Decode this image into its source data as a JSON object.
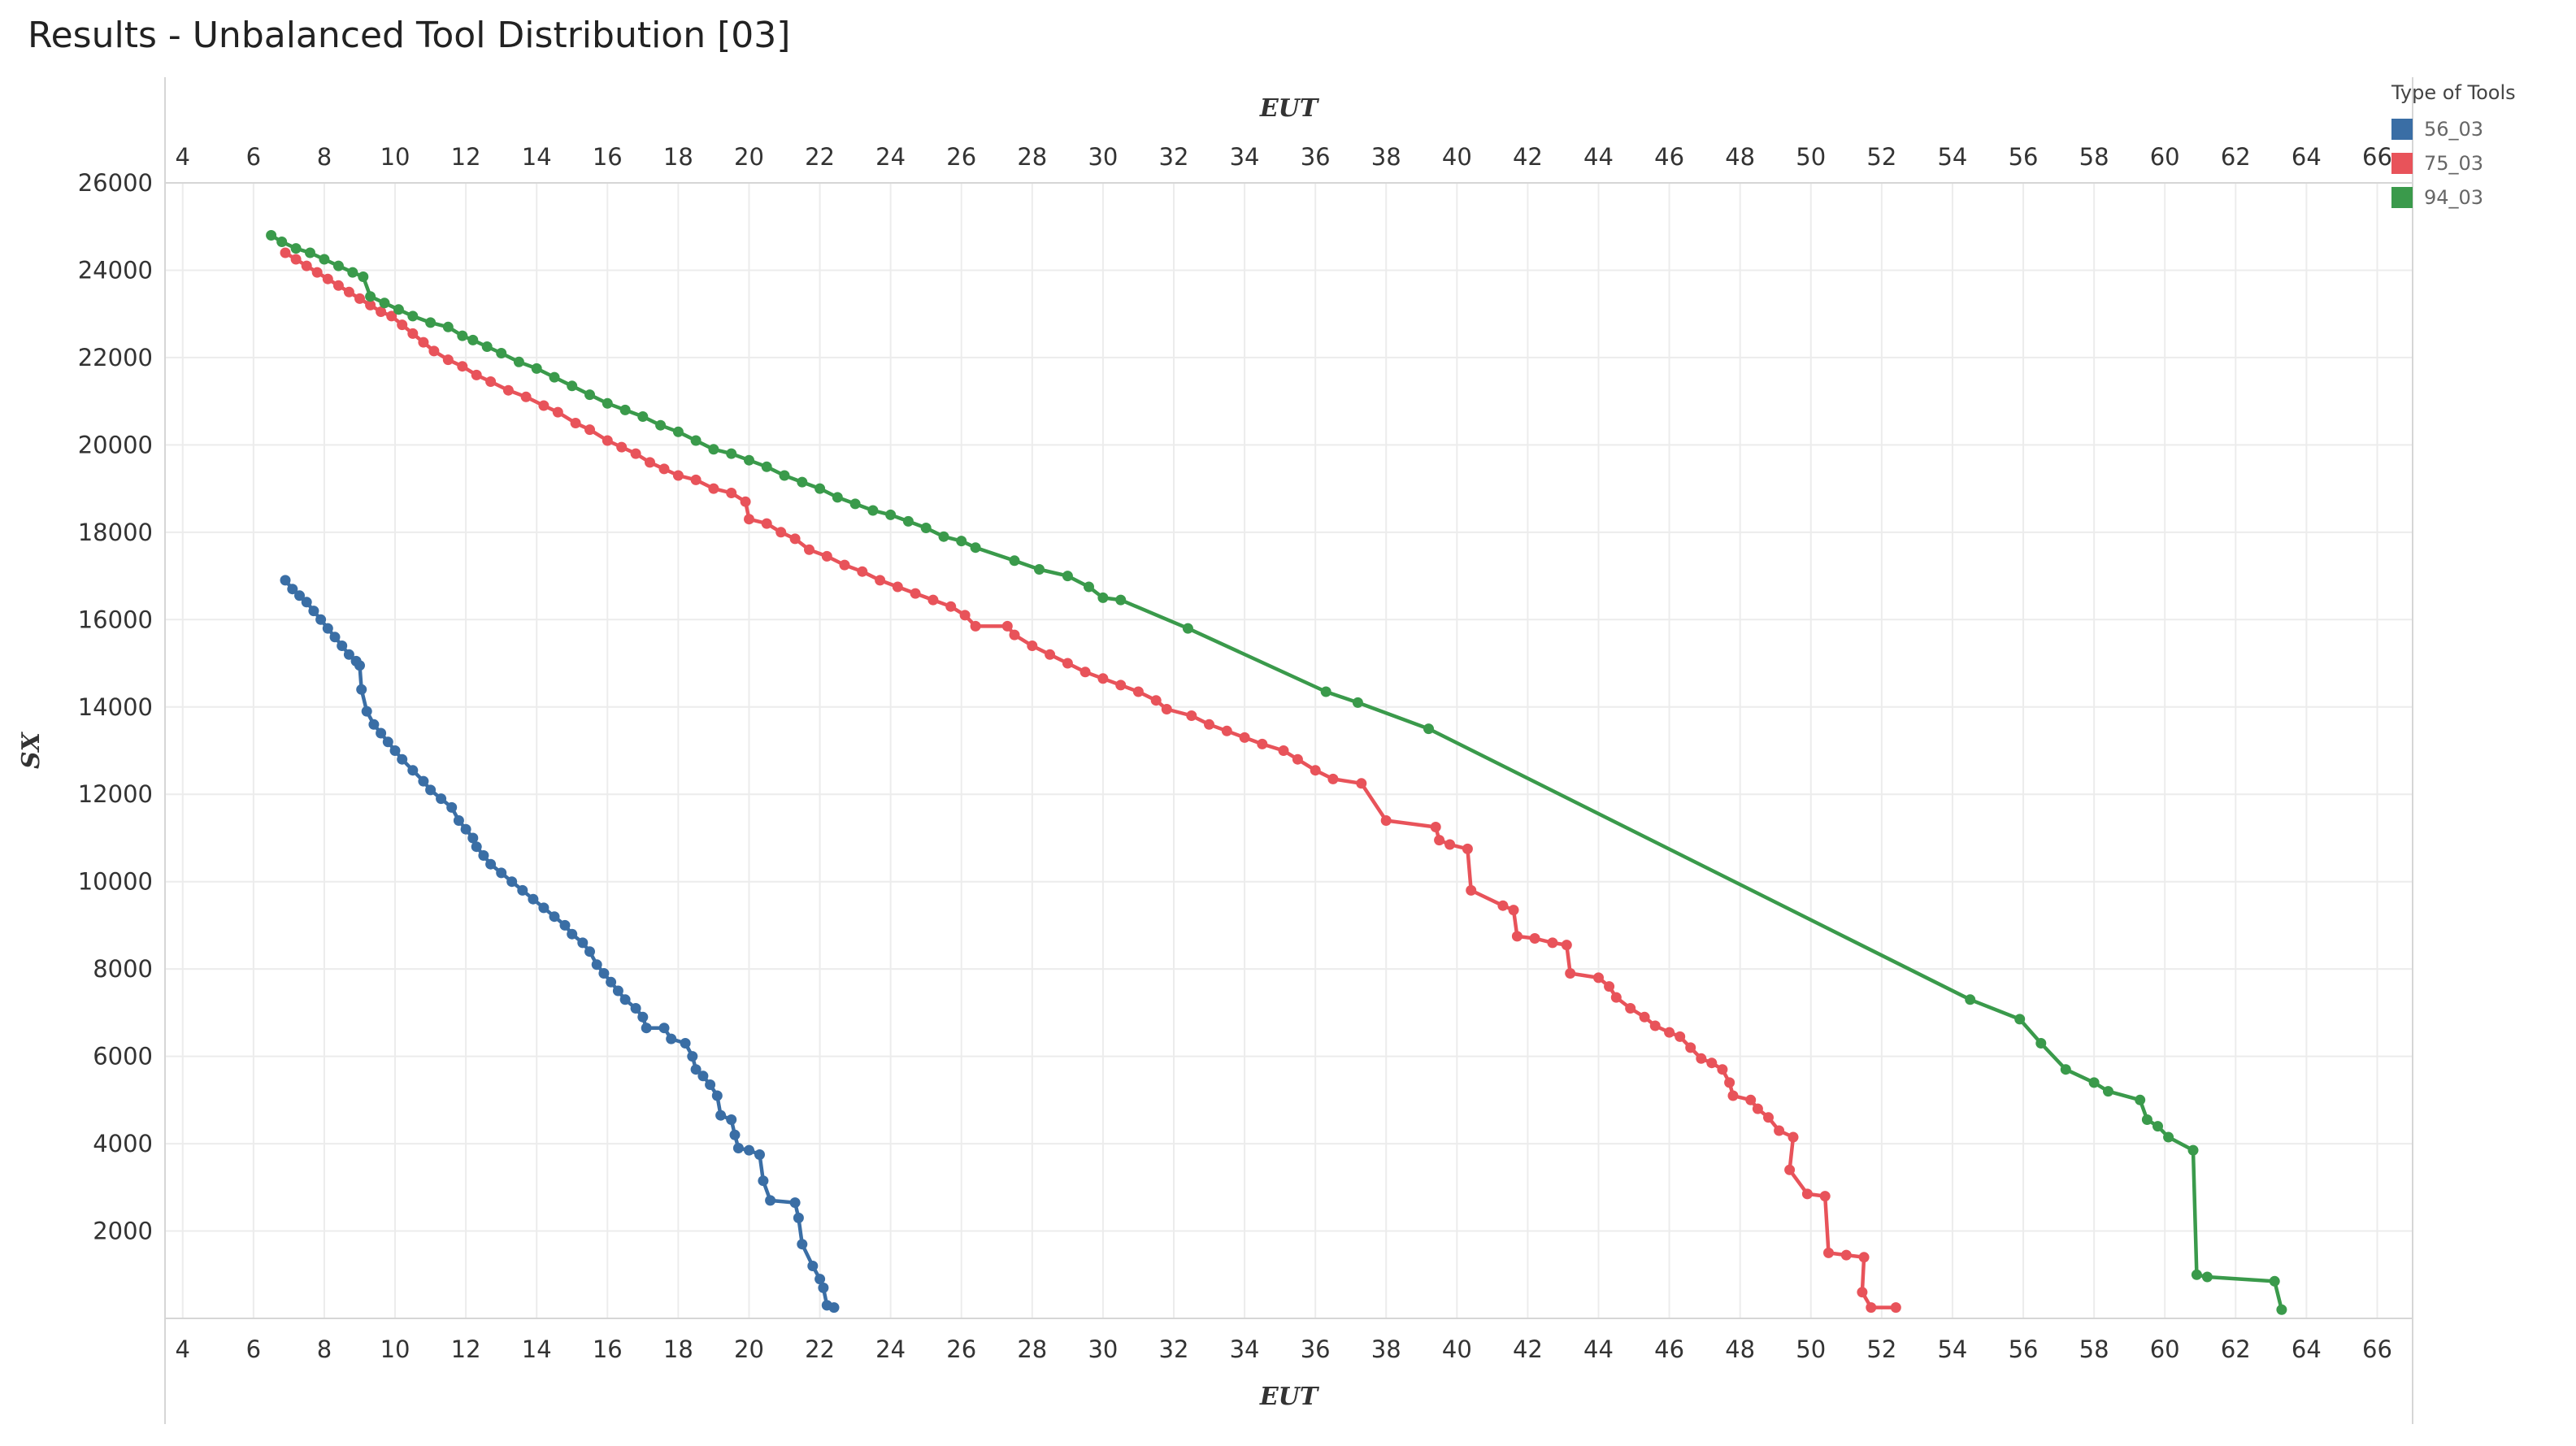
{
  "chart_data": {
    "type": "line",
    "title": "Results - Unbalanced Tool Distribution [03]",
    "xlabel": "EUT",
    "ylabel": "SX",
    "xlim": [
      3.5,
      67
    ],
    "ylim": [
      0,
      26000
    ],
    "xticks": [
      4,
      6,
      8,
      10,
      12,
      14,
      16,
      18,
      20,
      22,
      24,
      26,
      28,
      30,
      32,
      34,
      36,
      38,
      40,
      42,
      44,
      46,
      48,
      50,
      52,
      54,
      56,
      58,
      60,
      62,
      64,
      66
    ],
    "yticks": [
      2000,
      4000,
      6000,
      8000,
      10000,
      12000,
      14000,
      16000,
      18000,
      20000,
      22000,
      24000,
      26000
    ],
    "grid": true,
    "legend": {
      "title": "Type of Tools",
      "position": "right"
    },
    "series": [
      {
        "name": "56_03",
        "color": "#3a6ea5",
        "points": [
          [
            6.9,
            16900
          ],
          [
            7.1,
            16700
          ],
          [
            7.3,
            16550
          ],
          [
            7.5,
            16400
          ],
          [
            7.7,
            16200
          ],
          [
            7.9,
            16000
          ],
          [
            8.1,
            15800
          ],
          [
            8.3,
            15600
          ],
          [
            8.5,
            15400
          ],
          [
            8.7,
            15200
          ],
          [
            8.9,
            15050
          ],
          [
            9.0,
            14950
          ],
          [
            9.05,
            14400
          ],
          [
            9.2,
            13900
          ],
          [
            9.4,
            13600
          ],
          [
            9.6,
            13400
          ],
          [
            9.8,
            13200
          ],
          [
            10.0,
            13000
          ],
          [
            10.2,
            12800
          ],
          [
            10.5,
            12550
          ],
          [
            10.8,
            12300
          ],
          [
            11.0,
            12100
          ],
          [
            11.3,
            11900
          ],
          [
            11.6,
            11700
          ],
          [
            11.8,
            11400
          ],
          [
            12.0,
            11200
          ],
          [
            12.2,
            11000
          ],
          [
            12.3,
            10800
          ],
          [
            12.5,
            10600
          ],
          [
            12.7,
            10400
          ],
          [
            13.0,
            10200
          ],
          [
            13.3,
            10000
          ],
          [
            13.6,
            9800
          ],
          [
            13.9,
            9600
          ],
          [
            14.2,
            9400
          ],
          [
            14.5,
            9200
          ],
          [
            14.8,
            9000
          ],
          [
            15.0,
            8800
          ],
          [
            15.3,
            8600
          ],
          [
            15.5,
            8400
          ],
          [
            15.7,
            8100
          ],
          [
            15.9,
            7900
          ],
          [
            16.1,
            7700
          ],
          [
            16.3,
            7500
          ],
          [
            16.5,
            7300
          ],
          [
            16.8,
            7100
          ],
          [
            17.0,
            6900
          ],
          [
            17.1,
            6650
          ],
          [
            17.6,
            6650
          ],
          [
            17.8,
            6400
          ],
          [
            18.2,
            6300
          ],
          [
            18.4,
            6000
          ],
          [
            18.5,
            5700
          ],
          [
            18.7,
            5550
          ],
          [
            18.9,
            5350
          ],
          [
            19.1,
            5100
          ],
          [
            19.2,
            4650
          ],
          [
            19.5,
            4550
          ],
          [
            19.6,
            4200
          ],
          [
            19.7,
            3900
          ],
          [
            20.0,
            3850
          ],
          [
            20.3,
            3750
          ],
          [
            20.4,
            3150
          ],
          [
            20.6,
            2700
          ],
          [
            21.3,
            2650
          ],
          [
            21.4,
            2300
          ],
          [
            21.5,
            1700
          ],
          [
            21.8,
            1200
          ],
          [
            22.0,
            900
          ],
          [
            22.1,
            700
          ],
          [
            22.2,
            300
          ],
          [
            22.4,
            250
          ]
        ]
      },
      {
        "name": "75_03",
        "color": "#e8535a",
        "points": [
          [
            6.9,
            24400
          ],
          [
            7.2,
            24250
          ],
          [
            7.5,
            24100
          ],
          [
            7.8,
            23950
          ],
          [
            8.1,
            23800
          ],
          [
            8.4,
            23650
          ],
          [
            8.7,
            23500
          ],
          [
            9.0,
            23350
          ],
          [
            9.3,
            23200
          ],
          [
            9.6,
            23050
          ],
          [
            9.9,
            22950
          ],
          [
            10.2,
            22750
          ],
          [
            10.5,
            22550
          ],
          [
            10.8,
            22350
          ],
          [
            11.1,
            22150
          ],
          [
            11.5,
            21950
          ],
          [
            11.9,
            21800
          ],
          [
            12.3,
            21600
          ],
          [
            12.7,
            21450
          ],
          [
            13.2,
            21250
          ],
          [
            13.7,
            21100
          ],
          [
            14.2,
            20900
          ],
          [
            14.6,
            20750
          ],
          [
            15.1,
            20500
          ],
          [
            15.5,
            20350
          ],
          [
            16.0,
            20100
          ],
          [
            16.4,
            19950
          ],
          [
            16.8,
            19800
          ],
          [
            17.2,
            19600
          ],
          [
            17.6,
            19450
          ],
          [
            18.0,
            19300
          ],
          [
            18.5,
            19200
          ],
          [
            19.0,
            19000
          ],
          [
            19.5,
            18900
          ],
          [
            19.9,
            18700
          ],
          [
            20.0,
            18300
          ],
          [
            20.5,
            18200
          ],
          [
            20.9,
            18000
          ],
          [
            21.3,
            17850
          ],
          [
            21.7,
            17600
          ],
          [
            22.2,
            17450
          ],
          [
            22.7,
            17250
          ],
          [
            23.2,
            17100
          ],
          [
            23.7,
            16900
          ],
          [
            24.2,
            16750
          ],
          [
            24.7,
            16600
          ],
          [
            25.2,
            16450
          ],
          [
            25.7,
            16300
          ],
          [
            26.1,
            16100
          ],
          [
            26.4,
            15850
          ],
          [
            27.3,
            15850
          ],
          [
            27.5,
            15650
          ],
          [
            28.0,
            15400
          ],
          [
            28.5,
            15200
          ],
          [
            29.0,
            15000
          ],
          [
            29.5,
            14800
          ],
          [
            30.0,
            14650
          ],
          [
            30.5,
            14500
          ],
          [
            31.0,
            14350
          ],
          [
            31.5,
            14150
          ],
          [
            31.8,
            13950
          ],
          [
            32.5,
            13800
          ],
          [
            33.0,
            13600
          ],
          [
            33.5,
            13450
          ],
          [
            34.0,
            13300
          ],
          [
            34.5,
            13150
          ],
          [
            35.1,
            13000
          ],
          [
            35.5,
            12800
          ],
          [
            36.0,
            12550
          ],
          [
            36.5,
            12350
          ],
          [
            37.3,
            12250
          ],
          [
            38.0,
            11400
          ],
          [
            39.4,
            11250
          ],
          [
            39.5,
            10950
          ],
          [
            39.8,
            10850
          ],
          [
            40.3,
            10750
          ],
          [
            40.4,
            9800
          ],
          [
            41.3,
            9450
          ],
          [
            41.6,
            9350
          ],
          [
            41.7,
            8750
          ],
          [
            42.2,
            8700
          ],
          [
            42.7,
            8600
          ],
          [
            43.1,
            8550
          ],
          [
            43.2,
            7900
          ],
          [
            44.0,
            7800
          ],
          [
            44.3,
            7600
          ],
          [
            44.5,
            7350
          ],
          [
            44.9,
            7100
          ],
          [
            45.3,
            6900
          ],
          [
            45.6,
            6700
          ],
          [
            46.0,
            6550
          ],
          [
            46.3,
            6450
          ],
          [
            46.6,
            6200
          ],
          [
            46.9,
            5950
          ],
          [
            47.2,
            5850
          ],
          [
            47.5,
            5700
          ],
          [
            47.7,
            5400
          ],
          [
            47.8,
            5100
          ],
          [
            48.3,
            5000
          ],
          [
            48.5,
            4800
          ],
          [
            48.8,
            4600
          ],
          [
            49.1,
            4300
          ],
          [
            49.5,
            4150
          ],
          [
            49.4,
            3400
          ],
          [
            49.9,
            2850
          ],
          [
            50.4,
            2800
          ],
          [
            50.5,
            1500
          ],
          [
            51.0,
            1450
          ],
          [
            51.5,
            1400
          ],
          [
            51.45,
            600
          ],
          [
            51.7,
            250
          ],
          [
            52.4,
            250
          ]
        ]
      },
      {
        "name": "94_03",
        "color": "#3a9a4b",
        "points": [
          [
            6.5,
            24800
          ],
          [
            6.8,
            24650
          ],
          [
            7.2,
            24500
          ],
          [
            7.6,
            24400
          ],
          [
            8.0,
            24250
          ],
          [
            8.4,
            24100
          ],
          [
            8.8,
            23950
          ],
          [
            9.1,
            23850
          ],
          [
            9.3,
            23400
          ],
          [
            9.7,
            23250
          ],
          [
            10.1,
            23100
          ],
          [
            10.5,
            22950
          ],
          [
            11.0,
            22800
          ],
          [
            11.5,
            22700
          ],
          [
            11.9,
            22500
          ],
          [
            12.2,
            22400
          ],
          [
            12.6,
            22250
          ],
          [
            13.0,
            22100
          ],
          [
            13.5,
            21900
          ],
          [
            14.0,
            21750
          ],
          [
            14.5,
            21550
          ],
          [
            15.0,
            21350
          ],
          [
            15.5,
            21150
          ],
          [
            16.0,
            20950
          ],
          [
            16.5,
            20800
          ],
          [
            17.0,
            20650
          ],
          [
            17.5,
            20450
          ],
          [
            18.0,
            20300
          ],
          [
            18.5,
            20100
          ],
          [
            19.0,
            19900
          ],
          [
            19.5,
            19800
          ],
          [
            20.0,
            19650
          ],
          [
            20.5,
            19500
          ],
          [
            21.0,
            19300
          ],
          [
            21.5,
            19150
          ],
          [
            22.0,
            19000
          ],
          [
            22.5,
            18800
          ],
          [
            23.0,
            18650
          ],
          [
            23.5,
            18500
          ],
          [
            24.0,
            18400
          ],
          [
            24.5,
            18250
          ],
          [
            25.0,
            18100
          ],
          [
            25.5,
            17900
          ],
          [
            26.0,
            17800
          ],
          [
            26.4,
            17650
          ],
          [
            27.5,
            17350
          ],
          [
            28.2,
            17150
          ],
          [
            29.0,
            17000
          ],
          [
            29.6,
            16750
          ],
          [
            30.0,
            16500
          ],
          [
            30.5,
            16450
          ],
          [
            32.4,
            15800
          ],
          [
            36.3,
            14350
          ],
          [
            37.2,
            14100
          ],
          [
            39.2,
            13500
          ],
          [
            54.5,
            7300
          ],
          [
            55.9,
            6850
          ],
          [
            56.5,
            6300
          ],
          [
            57.2,
            5700
          ],
          [
            58.0,
            5400
          ],
          [
            58.4,
            5200
          ],
          [
            59.3,
            5000
          ],
          [
            59.5,
            4550
          ],
          [
            59.8,
            4400
          ],
          [
            60.1,
            4150
          ],
          [
            60.8,
            3850
          ],
          [
            60.9,
            1000
          ],
          [
            61.2,
            950
          ],
          [
            63.1,
            850
          ],
          [
            63.3,
            200
          ]
        ]
      }
    ]
  }
}
